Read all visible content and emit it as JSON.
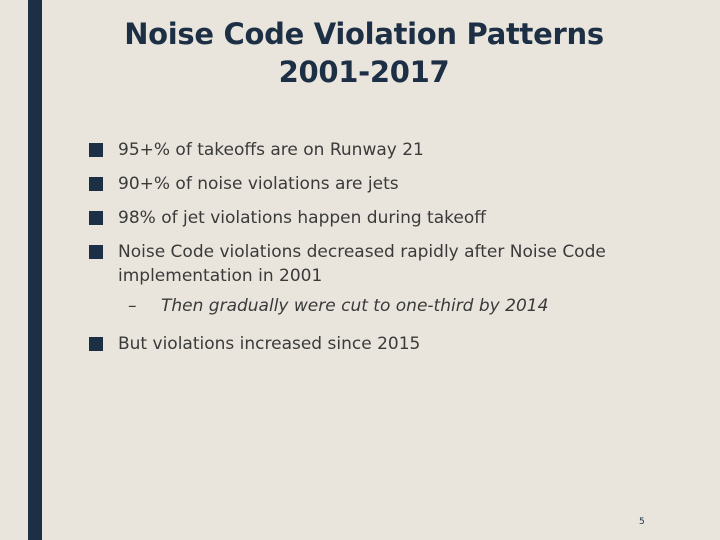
{
  "slide": {
    "title_line1": "Noise Code Violation Patterns",
    "title_line2": "2001-2017",
    "bullets": [
      "95+% of takeoffs are on Runway 21",
      "90+% of noise violations are jets",
      "98% of jet violations happen during takeoff",
      "Noise Code violations decreased rapidly after Noise Code implementation in 2001",
      "But violations increased since 2015"
    ],
    "sub_bullet_marker": "–",
    "sub_bullet": "Then gradually were cut to one-third by 2014",
    "page_number": "5"
  },
  "colors": {
    "background": "#e9e5dd",
    "accent": "#1c2f45",
    "text": "#3a3a3a"
  }
}
